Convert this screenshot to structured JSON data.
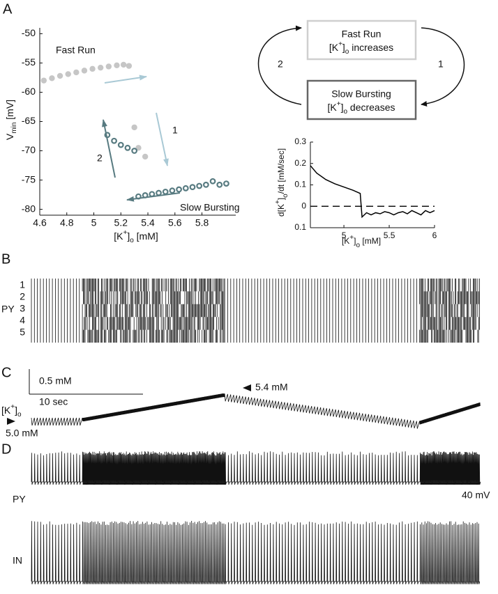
{
  "panel_labels": [
    "A",
    "B",
    "C",
    "D"
  ],
  "chart_data": [
    {
      "type": "scatter",
      "xlabel": [
        {
          "t": "[K"
        },
        {
          "t": "+",
          "v": "sup"
        },
        {
          "t": "]"
        },
        {
          "t": "o",
          "v": "sub"
        },
        {
          "t": " [mM]"
        }
      ],
      "ylabel": [
        {
          "t": "V"
        },
        {
          "t": "min",
          "v": "sub"
        },
        {
          "t": " [mV]"
        }
      ],
      "xlim": [
        4.6,
        6.05
      ],
      "xticks": [
        4.6,
        4.8,
        5,
        5.2,
        5.4,
        5.6,
        5.8
      ],
      "ylim": [
        -81,
        -49
      ],
      "yticks": [
        -50,
        -55,
        -60,
        -65,
        -70,
        -75,
        -80
      ],
      "annotations": [
        "1",
        "2"
      ],
      "series": [
        {
          "name": "Fast Run",
          "color": "#c6c6c6",
          "marker": "dot",
          "x": [
            4.63,
            4.69,
            4.75,
            4.81,
            4.87,
            4.93,
            4.99,
            5.05,
            5.11,
            5.17,
            5.22,
            5.26
          ],
          "values": [
            -58,
            -57.6,
            -57.2,
            -56.9,
            -56.6,
            -56.3,
            -56,
            -55.8,
            -55.6,
            -55.4,
            -55.3,
            -55.5
          ]
        },
        {
          "color": "#c6c6c6",
          "marker": "dot",
          "x": [
            5.3,
            5.33,
            5.38
          ],
          "values": [
            -66,
            -69.5,
            -71
          ]
        },
        {
          "name": "Slow Bursting",
          "color": "#587b81",
          "marker": "ring",
          "x": [
            5.1,
            5.15,
            5.2,
            5.25,
            5.3,
            5.33,
            5.38,
            5.43,
            5.48,
            5.53,
            5.58,
            5.63,
            5.68,
            5.73,
            5.78,
            5.83,
            5.88,
            5.93,
            5.98
          ],
          "values": [
            -67.3,
            -68.3,
            -69,
            -69.5,
            -70,
            -77.8,
            -77.6,
            -77.4,
            -77.2,
            -77,
            -76.8,
            -76.6,
            -76.4,
            -76.2,
            -76,
            -75.8,
            -75.2,
            -75.8,
            -75.6
          ]
        }
      ]
    },
    {
      "type": "line",
      "xlabel": [
        {
          "t": "[K"
        },
        {
          "t": "+",
          "v": "sup"
        },
        {
          "t": "]"
        },
        {
          "t": "o",
          "v": "sub"
        },
        {
          "t": " [mM]"
        }
      ],
      "ylabel": [
        {
          "t": "d[K"
        },
        {
          "t": "+",
          "v": "sup"
        },
        {
          "t": "]"
        },
        {
          "t": "o",
          "v": "sub"
        },
        {
          "t": "/dt [mM/sec]"
        }
      ],
      "xlim": [
        4.63,
        6
      ],
      "xticks": [
        5,
        5.5,
        6
      ],
      "ylim": [
        -0.1,
        0.3
      ],
      "yticks": [
        {
          "value": -0.1,
          "label": "0.1"
        },
        0,
        0.1,
        0.2,
        0.3
      ],
      "hline": 0,
      "series": [
        {
          "color": "#000000",
          "x": [
            4.63,
            4.7,
            4.8,
            4.9,
            5.0,
            5.1,
            5.18,
            5.2,
            5.25,
            5.3,
            5.35,
            5.4,
            5.45,
            5.5,
            5.55,
            5.6,
            5.65,
            5.7,
            5.75,
            5.8,
            5.85,
            5.9,
            5.95,
            6.0
          ],
          "values": [
            0.19,
            0.155,
            0.125,
            0.105,
            0.09,
            0.075,
            0.06,
            -0.05,
            -0.03,
            -0.04,
            -0.03,
            -0.035,
            -0.025,
            -0.03,
            -0.04,
            -0.03,
            -0.025,
            -0.035,
            -0.02,
            -0.03,
            -0.04,
            -0.02,
            -0.03,
            -0.02
          ]
        }
      ]
    }
  ],
  "diagram": {
    "states": [
      {
        "title": "Fast Run",
        "text": [
          {
            "t": "[K"
          },
          {
            "t": "+",
            "v": "sup"
          },
          {
            "t": "]"
          },
          {
            "t": "o",
            "v": "sub"
          },
          {
            "t": " increases"
          }
        ]
      },
      {
        "title": "Slow Bursting",
        "text": [
          {
            "t": "[K"
          },
          {
            "t": "+",
            "v": "sup"
          },
          {
            "t": "]"
          },
          {
            "t": "o",
            "v": "sub"
          },
          {
            "t": " decreases"
          }
        ]
      }
    ],
    "transitions": [
      "1",
      "2"
    ]
  },
  "raster": {
    "label": "PY",
    "rows": [
      "1",
      "2",
      "3",
      "4",
      "5"
    ]
  },
  "potassium": {
    "label": [
      {
        "t": "[K"
      },
      {
        "t": "+",
        "v": "sup"
      },
      {
        "t": "]"
      },
      {
        "t": "o",
        "v": "sub"
      }
    ],
    "scale_conc": "0.5 mM",
    "scale_time": "10 sec",
    "start": "5.0 mM",
    "peak": "5.4 mM"
  },
  "voltage": {
    "traces": [
      "PY",
      "IN"
    ],
    "scale": "40 mV"
  }
}
